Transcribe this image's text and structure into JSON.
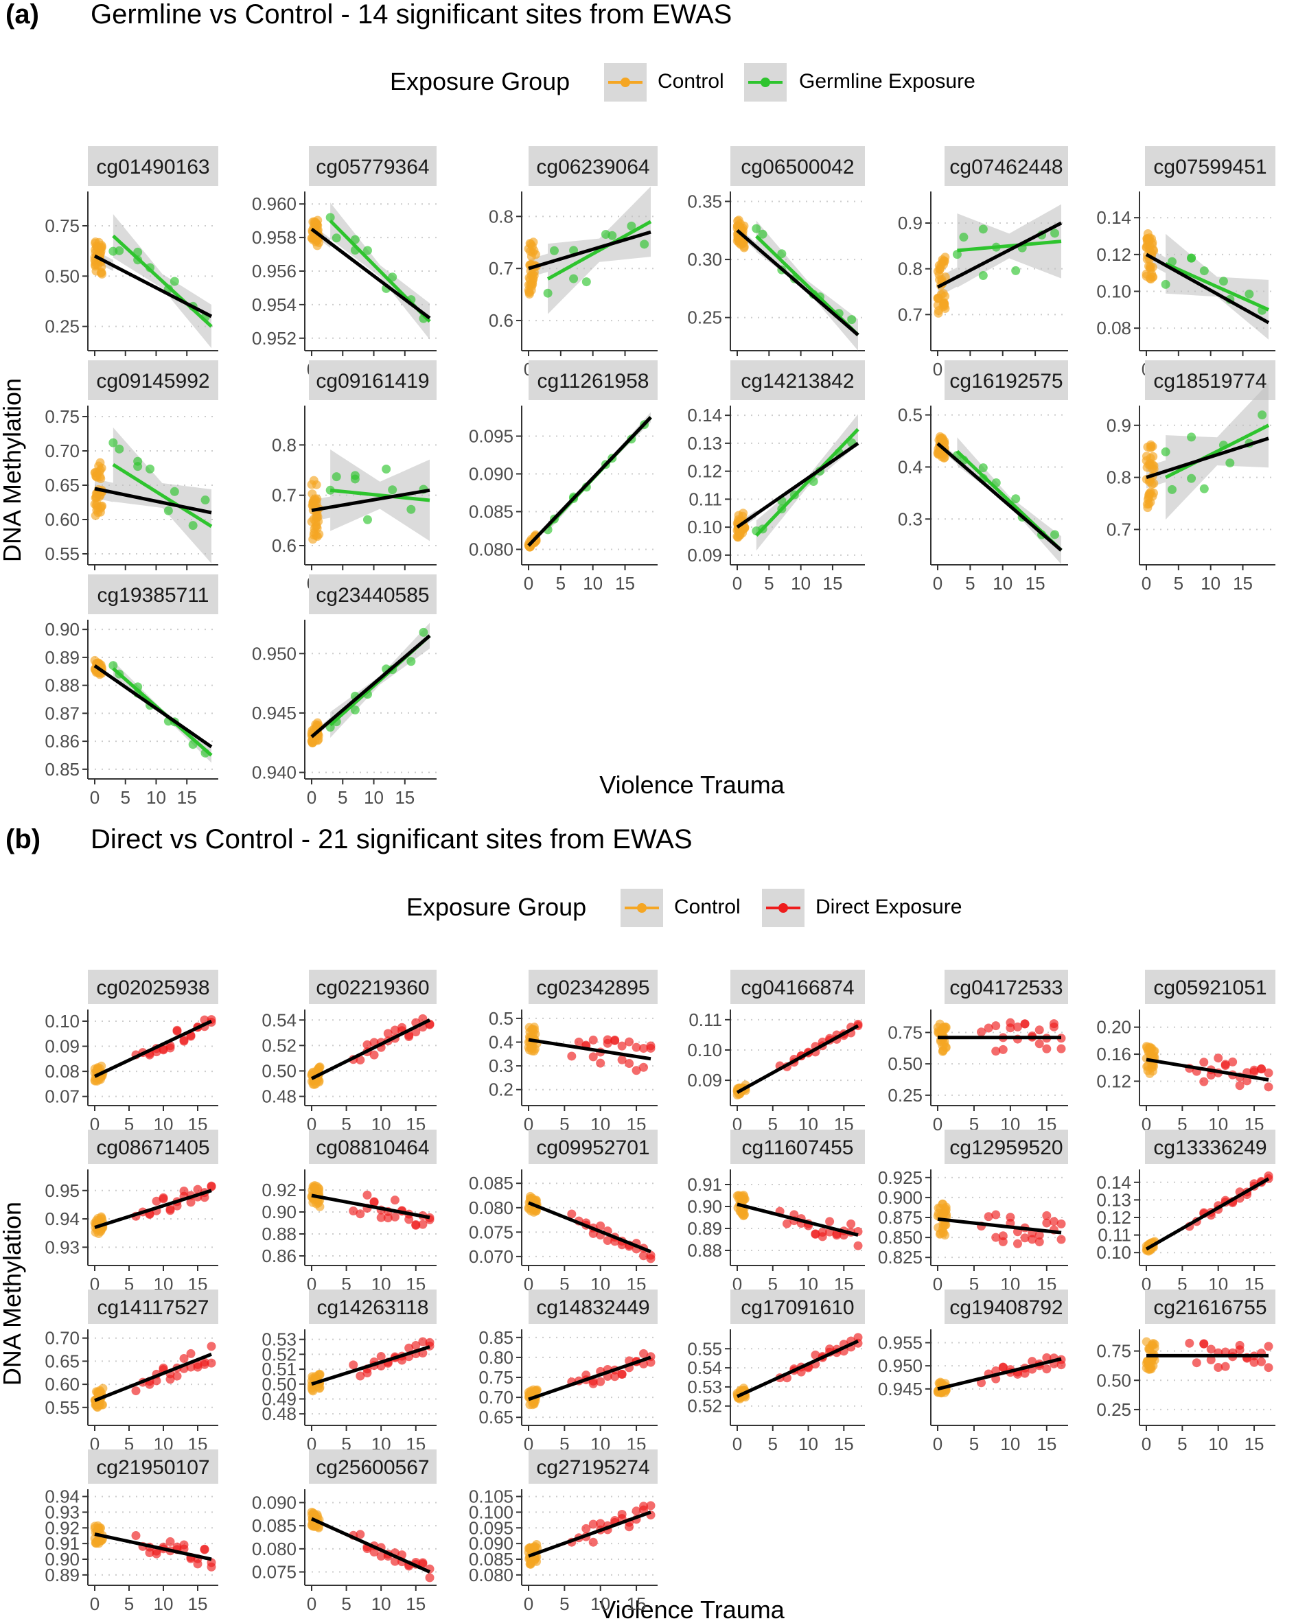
{
  "colors": {
    "control": "#F5A623",
    "germline": "#2EC42E",
    "direct": "#EE1C1C",
    "fit": "#000000",
    "strip": "#D9D9D9",
    "ribbon": "#BEBEBE",
    "grid": "#CCCCCC"
  },
  "sections": [
    {
      "label": "(a)",
      "title": "Germline vs Control - 14 significant sites from EWAS",
      "legend_title": "Exposure Group",
      "legend_items": [
        {
          "label": "Control",
          "color_key": "control"
        },
        {
          "label": "Germline Exposure",
          "color_key": "germline"
        }
      ],
      "xlabel": "Violence Trauma",
      "ylabel": "DNA Methylation"
    },
    {
      "label": "(b)",
      "title": "Direct vs Control - 21 significant sites from EWAS",
      "legend_title": "Exposure Group",
      "legend_items": [
        {
          "label": "Control",
          "color_key": "control"
        },
        {
          "label": "Direct Exposure",
          "color_key": "direct"
        }
      ],
      "xlabel": "Violence Trauma",
      "ylabel": "DNA Methylation"
    }
  ],
  "chart_data": [
    {
      "type": "scatter",
      "section": "(a)",
      "title": "Germline vs Control - 14 significant sites from EWAS",
      "xlabel": "Violence Trauma",
      "ylabel": "DNA Methylation",
      "xlim": [
        0,
        19
      ],
      "xticks": [
        0,
        5,
        10,
        15
      ],
      "exposed_group": "Germline Exposure",
      "exposed_key": "germline",
      "exposed_x": [
        3,
        4,
        7,
        7,
        9,
        12,
        13,
        16,
        18
      ],
      "control_count": 36,
      "legend": [
        {
          "label": "Control",
          "color_key": "control"
        },
        {
          "label": "Germline Exposure",
          "color_key": "germline"
        }
      ],
      "facets": [
        {
          "name": "cg01490163",
          "yticks": [
            0.25,
            0.5,
            0.75
          ],
          "ylim": [
            0.15,
            0.9
          ],
          "fit": [
            0.6,
            0.3
          ],
          "exp_fit": [
            0.7,
            0.25
          ],
          "noise": 0.08
        },
        {
          "name": "cg05779364",
          "yticks": [
            0.952,
            0.954,
            0.956,
            0.958,
            0.96
          ],
          "ylim": [
            0.9515,
            0.9605
          ],
          "fit": [
            0.9585,
            0.9532
          ],
          "exp_fit": [
            0.959,
            0.953
          ],
          "noise": 0.0008
        },
        {
          "name": "cg06239064",
          "yticks": [
            0.6,
            0.7,
            0.8
          ],
          "ylim": [
            0.55,
            0.84
          ],
          "fit": [
            0.7,
            0.77
          ],
          "exp_fit": [
            0.68,
            0.79
          ],
          "noise": 0.05
        },
        {
          "name": "cg06500042",
          "yticks": [
            0.25,
            0.3,
            0.35
          ],
          "ylim": [
            0.225,
            0.355
          ],
          "fit": [
            0.325,
            0.235
          ],
          "exp_fit": [
            0.32,
            0.235
          ],
          "noise": 0.01
        },
        {
          "name": "cg07462448",
          "yticks": [
            0.7,
            0.8,
            0.9
          ],
          "ylim": [
            0.63,
            0.96
          ],
          "fit": [
            0.76,
            0.9
          ],
          "exp_fit": [
            0.84,
            0.86
          ],
          "noise": 0.06
        },
        {
          "name": "cg07599451",
          "yticks": [
            0.08,
            0.1,
            0.12,
            0.14
          ],
          "ylim": [
            0.07,
            0.152
          ],
          "fit": [
            0.12,
            0.083
          ],
          "exp_fit": [
            0.115,
            0.09
          ],
          "noise": 0.012
        }
      ],
      "facets_row2": [
        {
          "name": "cg09145992",
          "yticks": [
            0.55,
            0.6,
            0.65,
            0.7,
            0.75
          ],
          "ylim": [
            0.54,
            0.76
          ],
          "fit": [
            0.645,
            0.61
          ],
          "exp_fit": [
            0.68,
            0.59
          ],
          "noise": 0.04
        },
        {
          "name": "cg09161419",
          "yticks": [
            0.6,
            0.7,
            0.8
          ],
          "ylim": [
            0.57,
            0.87
          ],
          "fit": [
            0.67,
            0.71
          ],
          "exp_fit": [
            0.71,
            0.69
          ],
          "noise": 0.06
        },
        {
          "name": "cg11261958",
          "yticks": [
            0.08,
            0.085,
            0.09,
            0.095
          ],
          "ylim": [
            0.0785,
            0.0985
          ],
          "fit": [
            0.0805,
            0.0975
          ],
          "exp_fit": [
            0.083,
            0.0975
          ],
          "noise": 0.0005
        },
        {
          "name": "cg14213842",
          "yticks": [
            0.09,
            0.1,
            0.11,
            0.12,
            0.13,
            0.14
          ],
          "ylim": [
            0.088,
            0.142
          ],
          "fit": [
            0.1,
            0.13
          ],
          "exp_fit": [
            0.097,
            0.135
          ],
          "noise": 0.004
        },
        {
          "name": "cg16192575",
          "yticks": [
            0.3,
            0.4,
            0.5
          ],
          "ylim": [
            0.22,
            0.51
          ],
          "fit": [
            0.445,
            0.24
          ],
          "exp_fit": [
            0.43,
            0.24
          ],
          "noise": 0.02
        },
        {
          "name": "cg18519774",
          "yticks": [
            0.7,
            0.8,
            0.9
          ],
          "ylim": [
            0.64,
            0.93
          ],
          "fit": [
            0.8,
            0.875
          ],
          "exp_fit": [
            0.8,
            0.9
          ],
          "noise": 0.06
        }
      ],
      "facets_row3": [
        {
          "name": "cg19385711",
          "yticks": [
            0.85,
            0.86,
            0.87,
            0.88,
            0.89,
            0.9
          ],
          "ylim": [
            0.848,
            0.902
          ],
          "fit": [
            0.887,
            0.858
          ],
          "exp_fit": [
            0.886,
            0.855
          ],
          "noise": 0.002
        },
        {
          "name": "cg23440585",
          "yticks": [
            0.94,
            0.945,
            0.95
          ],
          "ylim": [
            0.9398,
            0.9525
          ],
          "fit": [
            0.943,
            0.9515
          ],
          "exp_fit": [
            0.944,
            0.9515
          ],
          "noise": 0.0008
        }
      ]
    },
    {
      "type": "scatter",
      "section": "(b)",
      "title": "Direct vs Control - 21 significant sites from EWAS",
      "xlabel": "Violence Trauma",
      "ylabel": "DNA Methylation",
      "xlim": [
        0,
        17
      ],
      "xticks": [
        0,
        5,
        10,
        15
      ],
      "exposed_group": "Direct Exposure",
      "exposed_key": "direct",
      "exposed_x": [
        6,
        7,
        8,
        8,
        9,
        9,
        10,
        10,
        11,
        11,
        12,
        12,
        13,
        13,
        14,
        14,
        15,
        15,
        16,
        16,
        17,
        17
      ],
      "control_count": 30,
      "legend": [
        {
          "label": "Control",
          "color_key": "control"
        },
        {
          "label": "Direct Exposure",
          "color_key": "direct"
        }
      ],
      "facets": [
        {
          "name": "cg02025938",
          "yticks": [
            0.07,
            0.08,
            0.09,
            0.1
          ],
          "ylim": [
            0.068,
            0.103
          ],
          "fit": [
            0.078,
            0.1
          ],
          "noise": 0.003
        },
        {
          "name": "cg02219360",
          "yticks": [
            0.48,
            0.5,
            0.52,
            0.54
          ],
          "ylim": [
            0.476,
            0.545
          ],
          "fit": [
            0.494,
            0.54
          ],
          "noise": 0.006
        },
        {
          "name": "cg02342895",
          "yticks": [
            0.2,
            0.3,
            0.4,
            0.5
          ],
          "ylim": [
            0.15,
            0.52
          ],
          "fit": [
            0.41,
            0.33
          ],
          "noise": 0.06
        },
        {
          "name": "cg04166874",
          "yticks": [
            0.09,
            0.1,
            0.11
          ],
          "ylim": [
            0.083,
            0.112
          ],
          "fit": [
            0.086,
            0.108
          ],
          "noise": 0.0012
        },
        {
          "name": "cg04172533",
          "yticks": [
            0.25,
            0.5,
            0.75
          ],
          "ylim": [
            0.2,
            0.9
          ],
          "fit": [
            0.71,
            0.71
          ],
          "noise": 0.12
        },
        {
          "name": "cg05921051",
          "yticks": [
            0.12,
            0.16,
            0.2
          ],
          "ylim": [
            0.09,
            0.22
          ],
          "fit": [
            0.152,
            0.122
          ],
          "noise": 0.02
        }
      ],
      "facets_row2": [
        {
          "name": "cg08671405",
          "yticks": [
            0.93,
            0.94,
            0.95
          ],
          "ylim": [
            0.925,
            0.956
          ],
          "fit": [
            0.937,
            0.95
          ],
          "noise": 0.003
        },
        {
          "name": "cg08810464",
          "yticks": [
            0.86,
            0.88,
            0.9,
            0.92
          ],
          "ylim": [
            0.855,
            0.935
          ],
          "fit": [
            0.915,
            0.895
          ],
          "noise": 0.01
        },
        {
          "name": "cg09952701",
          "yticks": [
            0.07,
            0.075,
            0.08,
            0.085
          ],
          "ylim": [
            0.069,
            0.087
          ],
          "fit": [
            0.081,
            0.071
          ],
          "noise": 0.0015
        },
        {
          "name": "cg11607455",
          "yticks": [
            0.88,
            0.89,
            0.9,
            0.91
          ],
          "ylim": [
            0.875,
            0.915
          ],
          "fit": [
            0.901,
            0.887
          ],
          "noise": 0.005
        },
        {
          "name": "cg12959520",
          "yticks": [
            0.825,
            0.85,
            0.875,
            0.9,
            0.925
          ],
          "ylim": [
            0.82,
            0.93
          ],
          "fit": [
            0.873,
            0.856
          ],
          "noise": 0.02
        },
        {
          "name": "cg13336249",
          "yticks": [
            0.1,
            0.11,
            0.12,
            0.13,
            0.14
          ],
          "ylim": [
            0.095,
            0.145
          ],
          "fit": [
            0.102,
            0.142
          ],
          "noise": 0.002
        }
      ],
      "facets_row3": [
        {
          "name": "cg14117527",
          "yticks": [
            0.55,
            0.6,
            0.65,
            0.7
          ],
          "ylim": [
            0.52,
            0.71
          ],
          "fit": [
            0.565,
            0.665
          ],
          "noise": 0.02
        },
        {
          "name": "cg14263118",
          "yticks": [
            0.48,
            0.49,
            0.5,
            0.51,
            0.52,
            0.53
          ],
          "ylim": [
            0.475,
            0.534
          ],
          "fit": [
            0.5,
            0.525
          ],
          "noise": 0.005
        },
        {
          "name": "cg14832449",
          "yticks": [
            0.65,
            0.7,
            0.75,
            0.8,
            0.85
          ],
          "ylim": [
            0.64,
            0.86
          ],
          "fit": [
            0.695,
            0.8
          ],
          "noise": 0.02
        },
        {
          "name": "cg17091610",
          "yticks": [
            0.52,
            0.53,
            0.54,
            0.55
          ],
          "ylim": [
            0.512,
            0.558
          ],
          "fit": [
            0.525,
            0.554
          ],
          "noise": 0.003
        },
        {
          "name": "cg19408792",
          "yticks": [
            0.945,
            0.95,
            0.955
          ],
          "ylim": [
            0.938,
            0.957
          ],
          "fit": [
            0.945,
            0.9515
          ],
          "noise": 0.0015
        },
        {
          "name": "cg21616755",
          "yticks": [
            0.25,
            0.5,
            0.75
          ],
          "ylim": [
            0.15,
            0.9
          ],
          "fit": [
            0.71,
            0.71
          ],
          "noise": 0.12
        }
      ],
      "facets_row4": [
        {
          "name": "cg21950107",
          "yticks": [
            0.89,
            0.9,
            0.91,
            0.92,
            0.93,
            0.94
          ],
          "ylim": [
            0.886,
            0.942
          ],
          "fit": [
            0.916,
            0.9
          ],
          "noise": 0.006
        },
        {
          "name": "cg25600567",
          "yticks": [
            0.075,
            0.08,
            0.085,
            0.09
          ],
          "ylim": [
            0.073,
            0.092
          ],
          "fit": [
            0.0865,
            0.075
          ],
          "noise": 0.0015
        },
        {
          "name": "cg27195274",
          "yticks": [
            0.08,
            0.085,
            0.09,
            0.095,
            0.1,
            0.105
          ],
          "ylim": [
            0.078,
            0.106
          ],
          "fit": [
            0.086,
            0.1
          ],
          "noise": 0.003
        }
      ]
    }
  ]
}
